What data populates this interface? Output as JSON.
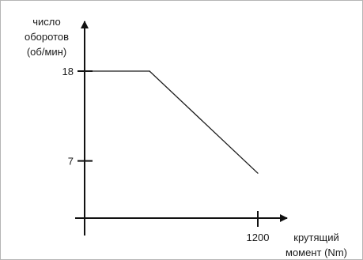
{
  "chart_data": {
    "type": "line",
    "ylabel": [
      "число",
      "оборотов",
      "(об/мин)"
    ],
    "xlabel": [
      "крутящий",
      "момент (Nm)"
    ],
    "y_ticks": [
      7,
      18
    ],
    "x_ticks": [
      1200
    ],
    "xlim": [
      0,
      1300
    ],
    "ylim": [
      0,
      22
    ],
    "series": [
      {
        "points": [
          {
            "x": 0,
            "y": 18
          },
          {
            "x": 450,
            "y": 18
          },
          {
            "x": 1200,
            "y": 5.5
          }
        ]
      }
    ]
  }
}
